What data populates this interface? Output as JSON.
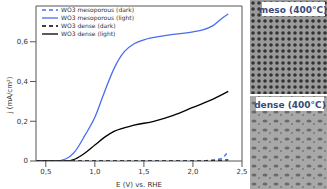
{
  "chart_data": {
    "type": "line",
    "x_label": "E (V) vs. RHE",
    "y_label": "j (mA/cm²)",
    "xlim": [
      0.4,
      2.5
    ],
    "ylim": [
      0,
      0.78
    ],
    "xticks": [
      {
        "value": 0.5,
        "label": "0,5"
      },
      {
        "value": 1.0,
        "label": "1,0"
      },
      {
        "value": 1.5,
        "label": "1,5"
      },
      {
        "value": 2.0,
        "label": "2,0"
      },
      {
        "value": 2.5,
        "label": "2,5"
      }
    ],
    "yticks": [
      0,
      {
        "value": 0.2,
        "label": "0,2"
      },
      {
        "value": 0.4,
        "label": "0,4"
      },
      {
        "value": 0.6,
        "label": "0,6"
      }
    ],
    "grid": false,
    "legend": "upper left",
    "series": [
      {
        "name": "WO3 mesoporous (dark)",
        "color": "#4a6cf0",
        "line_style": "dashed",
        "x": [
          0.4,
          0.8,
          1.2,
          1.6,
          2.0,
          2.2,
          2.3,
          2.33,
          2.36
        ],
        "values": [
          0,
          0,
          0,
          0,
          0,
          0.005,
          0.015,
          0.03,
          0.045
        ]
      },
      {
        "name": "WO3 mesoporous (light)",
        "color": "#4a6cf0",
        "line_style": "solid",
        "x": [
          0.4,
          0.6,
          0.7,
          0.8,
          0.9,
          1.0,
          1.1,
          1.2,
          1.3,
          1.4,
          1.5,
          1.7,
          2.0,
          2.1,
          2.2,
          2.3,
          2.36
        ],
        "values": [
          0,
          0,
          0.01,
          0.05,
          0.13,
          0.22,
          0.35,
          0.47,
          0.55,
          0.59,
          0.61,
          0.63,
          0.65,
          0.66,
          0.68,
          0.72,
          0.74
        ]
      },
      {
        "name": "WO3 dense (dark)",
        "color": "#000000",
        "line_style": "dashed",
        "x": [
          0.4,
          1.0,
          1.6,
          2.0,
          2.36
        ],
        "values": [
          0,
          0,
          0,
          0,
          0.005
        ]
      },
      {
        "name": "WO3 dense (light)",
        "color": "#000000",
        "line_style": "solid",
        "x": [
          0.4,
          0.7,
          0.8,
          0.9,
          1.0,
          1.1,
          1.2,
          1.4,
          1.6,
          1.8,
          2.0,
          2.2,
          2.36
        ],
        "values": [
          0,
          0,
          0.01,
          0.04,
          0.08,
          0.12,
          0.15,
          0.18,
          0.2,
          0.23,
          0.27,
          0.31,
          0.35
        ]
      }
    ]
  },
  "panels": [
    {
      "label": "meso (400°C)"
    },
    {
      "label": "dense (400°C)"
    }
  ]
}
